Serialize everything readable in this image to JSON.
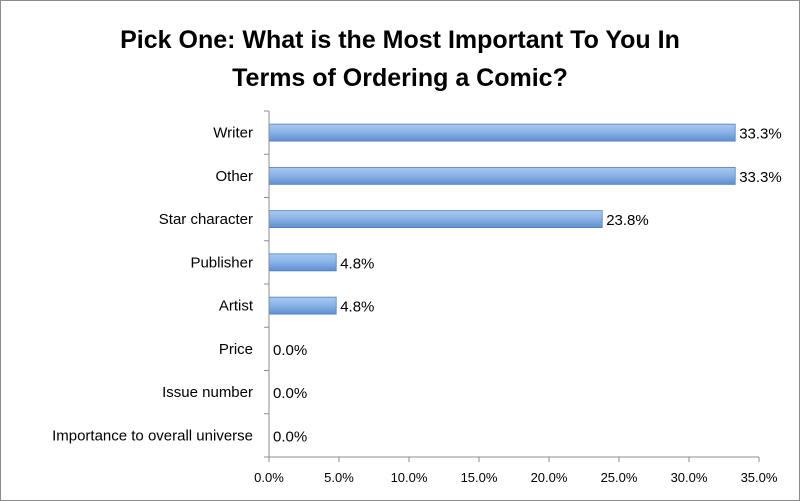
{
  "chart_data": {
    "type": "bar",
    "orientation": "horizontal",
    "title_lines": [
      "Pick One: What is the Most Important To You In",
      "Terms of Ordering a Comic?"
    ],
    "categories": [
      "Writer",
      "Other",
      "Star character",
      "Publisher",
      "Artist",
      "Price",
      "Issue number",
      "Importance to overall universe"
    ],
    "values": [
      33.3,
      33.3,
      23.8,
      4.8,
      4.8,
      0.0,
      0.0,
      0.0
    ],
    "data_labels": [
      "33.3%",
      "33.3%",
      "23.8%",
      "4.8%",
      "4.8%",
      "0.0%",
      "0.0%",
      "0.0%"
    ],
    "x_ticks": [
      0,
      5,
      10,
      15,
      20,
      25,
      30,
      35
    ],
    "x_tick_labels": [
      "0.0%",
      "5.0%",
      "10.0%",
      "15.0%",
      "20.0%",
      "25.0%",
      "30.0%",
      "35.0%"
    ],
    "xlim": [
      0,
      35
    ],
    "grid": false,
    "legend": "none",
    "bar_color": "#8cb4e8",
    "bar_edge_color": "#4f81bd"
  }
}
